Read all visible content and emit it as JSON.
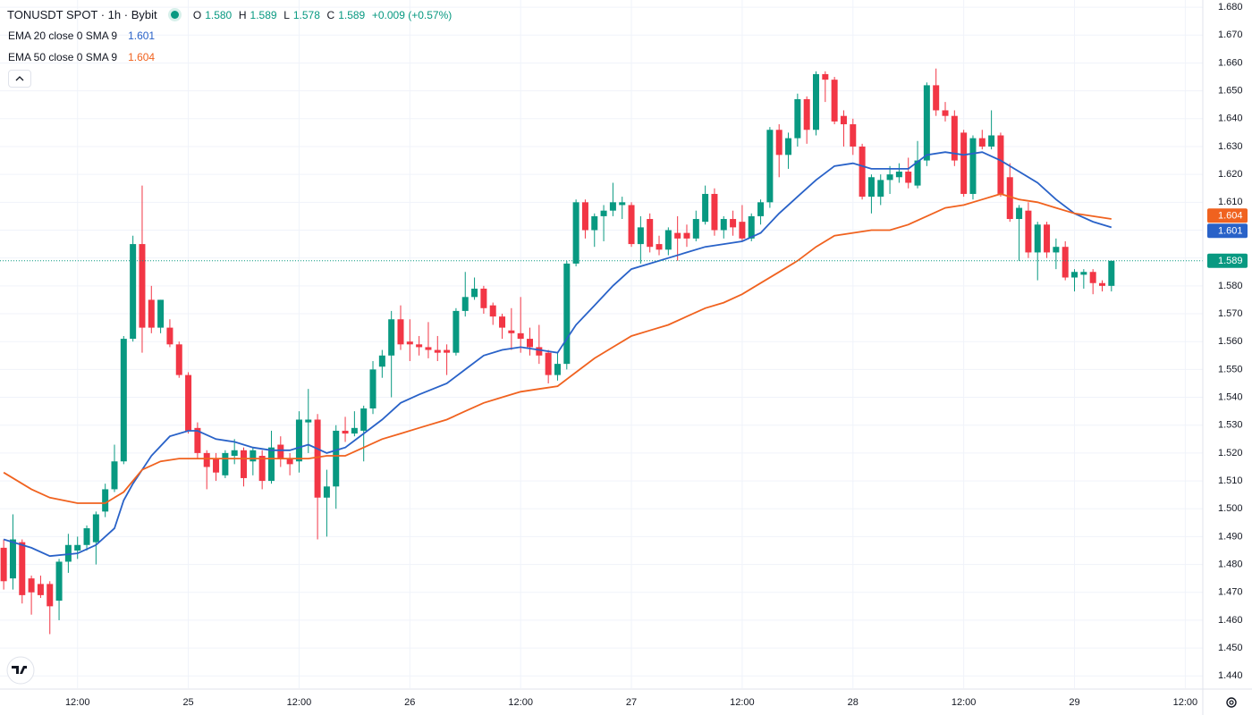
{
  "header": {
    "symbol": "TONUSDT SPOT · 1h · Bybit",
    "open_label": "O",
    "open": "1.580",
    "high_label": "H",
    "high": "1.589",
    "low_label": "L",
    "low": "1.578",
    "close_label": "C",
    "close": "1.589",
    "change": "+0.009 (+0.57%)"
  },
  "chart_data": {
    "type": "candlestick",
    "x": [
      4,
      5,
      6,
      7,
      8,
      9,
      10,
      11,
      12,
      13,
      14,
      15,
      16,
      17,
      18,
      19,
      20,
      21,
      22,
      23,
      24,
      25,
      26,
      27,
      28,
      29,
      30,
      31,
      32,
      33,
      34,
      35,
      36,
      37,
      38,
      39,
      40,
      41,
      42,
      43,
      44,
      45,
      46,
      47,
      48,
      49,
      50,
      51,
      52,
      53,
      54,
      55,
      56,
      57,
      58,
      59,
      60,
      61,
      62,
      63,
      64,
      65,
      66,
      67,
      68,
      69,
      70,
      71,
      72,
      73,
      74,
      75,
      76,
      77,
      78,
      79,
      80,
      81,
      82,
      83,
      84,
      85,
      86,
      87,
      88,
      89,
      90,
      91,
      92,
      93,
      94,
      95,
      96,
      97,
      98,
      99,
      100,
      101,
      102,
      103,
      104,
      105,
      106,
      107,
      108,
      109,
      110,
      111,
      112,
      113,
      114,
      115,
      116,
      117,
      118,
      119,
      120,
      121,
      122,
      123,
      124
    ],
    "open": [
      1.486,
      1.475,
      1.488,
      1.475,
      1.473,
      1.473,
      1.467,
      1.481,
      1.485,
      1.487,
      1.488,
      1.499,
      1.507,
      1.517,
      1.561,
      1.595,
      1.575,
      1.565,
      1.565,
      1.559,
      1.548,
      1.529,
      1.52,
      1.518,
      1.512,
      1.519,
      1.521,
      1.517,
      1.519,
      1.51,
      1.523,
      1.518,
      1.517,
      1.531,
      1.532,
      1.504,
      1.508,
      1.528,
      1.527,
      1.528,
      1.536,
      1.551,
      1.555,
      1.568,
      1.56,
      1.559,
      1.558,
      1.557,
      1.557,
      1.556,
      1.571,
      1.576,
      1.579,
      1.573,
      1.569,
      1.564,
      1.563,
      1.561,
      1.558,
      1.556,
      1.548,
      1.552,
      1.588,
      1.61,
      1.6,
      1.605,
      1.607,
      1.609,
      1.609,
      1.595,
      1.604,
      1.595,
      1.593,
      1.599,
      1.599,
      1.597,
      1.603,
      1.613,
      1.6,
      1.604,
      1.603,
      1.597,
      1.605,
      1.61,
      1.636,
      1.627,
      1.633,
      1.647,
      1.636,
      1.656,
      1.654,
      1.641,
      1.638,
      1.63,
      1.612,
      1.612,
      1.618,
      1.619,
      1.621,
      1.616,
      1.625,
      1.652,
      1.643,
      1.641,
      1.635,
      1.613,
      1.633,
      1.63,
      1.634,
      1.619,
      1.604,
      1.607,
      1.592,
      1.602,
      1.592,
      1.594,
      1.583,
      1.584,
      1.585,
      1.581,
      1.58
    ],
    "high": [
      1.489,
      1.498,
      1.489,
      1.476,
      1.476,
      1.474,
      1.482,
      1.491,
      1.49,
      1.494,
      1.499,
      1.509,
      1.523,
      1.562,
      1.598,
      1.616,
      1.58,
      1.575,
      1.568,
      1.56,
      1.549,
      1.531,
      1.521,
      1.52,
      1.521,
      1.525,
      1.522,
      1.522,
      1.521,
      1.528,
      1.526,
      1.52,
      1.535,
      1.543,
      1.534,
      1.514,
      1.53,
      1.533,
      1.535,
      1.537,
      1.553,
      1.557,
      1.571,
      1.573,
      1.568,
      1.562,
      1.567,
      1.562,
      1.559,
      1.572,
      1.585,
      1.583,
      1.58,
      1.574,
      1.57,
      1.572,
      1.576,
      1.565,
      1.566,
      1.557,
      1.556,
      1.589,
      1.611,
      1.611,
      1.606,
      1.609,
      1.617,
      1.612,
      1.61,
      1.605,
      1.606,
      1.598,
      1.601,
      1.605,
      1.602,
      1.607,
      1.616,
      1.615,
      1.605,
      1.607,
      1.609,
      1.606,
      1.611,
      1.637,
      1.638,
      1.635,
      1.649,
      1.648,
      1.657,
      1.657,
      1.655,
      1.643,
      1.64,
      1.631,
      1.62,
      1.62,
      1.623,
      1.624,
      1.626,
      1.632,
      1.653,
      1.658,
      1.646,
      1.643,
      1.636,
      1.634,
      1.636,
      1.643,
      1.635,
      1.624,
      1.609,
      1.61,
      1.603,
      1.603,
      1.597,
      1.596,
      1.586,
      1.586,
      1.586,
      1.582,
      1.589
    ],
    "low": [
      1.471,
      1.471,
      1.466,
      1.462,
      1.468,
      1.455,
      1.46,
      1.477,
      1.482,
      1.485,
      1.48,
      1.497,
      1.506,
      1.516,
      1.56,
      1.556,
      1.563,
      1.563,
      1.558,
      1.547,
      1.527,
      1.518,
      1.507,
      1.51,
      1.511,
      1.516,
      1.508,
      1.512,
      1.507,
      1.509,
      1.515,
      1.512,
      1.513,
      1.52,
      1.489,
      1.49,
      1.5,
      1.524,
      1.526,
      1.517,
      1.534,
      1.547,
      1.54,
      1.557,
      1.553,
      1.555,
      1.554,
      1.553,
      1.548,
      1.555,
      1.569,
      1.575,
      1.57,
      1.566,
      1.561,
      1.557,
      1.556,
      1.555,
      1.552,
      1.545,
      1.546,
      1.55,
      1.587,
      1.597,
      1.594,
      1.596,
      1.605,
      1.604,
      1.594,
      1.588,
      1.592,
      1.591,
      1.591,
      1.589,
      1.594,
      1.596,
      1.602,
      1.598,
      1.597,
      1.598,
      1.596,
      1.596,
      1.602,
      1.608,
      1.619,
      1.622,
      1.63,
      1.631,
      1.634,
      1.646,
      1.638,
      1.63,
      1.627,
      1.611,
      1.606,
      1.609,
      1.613,
      1.617,
      1.615,
      1.615,
      1.623,
      1.641,
      1.639,
      1.623,
      1.612,
      1.611,
      1.629,
      1.629,
      1.612,
      1.603,
      1.589,
      1.59,
      1.582,
      1.59,
      1.586,
      1.582,
      1.578,
      1.579,
      1.577,
      1.578,
      1.578
    ],
    "close": [
      1.474,
      1.489,
      1.469,
      1.47,
      1.469,
      1.465,
      1.481,
      1.487,
      1.487,
      1.493,
      1.498,
      1.507,
      1.517,
      1.561,
      1.595,
      1.565,
      1.565,
      1.575,
      1.559,
      1.548,
      1.528,
      1.52,
      1.515,
      1.513,
      1.52,
      1.521,
      1.511,
      1.521,
      1.51,
      1.522,
      1.518,
      1.516,
      1.532,
      1.532,
      1.504,
      1.508,
      1.528,
      1.527,
      1.529,
      1.536,
      1.55,
      1.555,
      1.568,
      1.559,
      1.559,
      1.558,
      1.557,
      1.556,
      1.556,
      1.571,
      1.576,
      1.579,
      1.572,
      1.569,
      1.565,
      1.563,
      1.561,
      1.558,
      1.555,
      1.548,
      1.552,
      1.588,
      1.61,
      1.6,
      1.605,
      1.607,
      1.61,
      1.61,
      1.595,
      1.601,
      1.594,
      1.593,
      1.6,
      1.597,
      1.597,
      1.604,
      1.613,
      1.6,
      1.604,
      1.601,
      1.597,
      1.605,
      1.61,
      1.636,
      1.627,
      1.633,
      1.647,
      1.636,
      1.656,
      1.654,
      1.639,
      1.638,
      1.63,
      1.612,
      1.619,
      1.618,
      1.62,
      1.621,
      1.617,
      1.625,
      1.652,
      1.643,
      1.641,
      1.625,
      1.613,
      1.633,
      1.63,
      1.634,
      1.613,
      1.604,
      1.608,
      1.592,
      1.602,
      1.592,
      1.594,
      1.583,
      1.585,
      1.585,
      1.581,
      1.58,
      1.589
    ],
    "up_color": "#089981",
    "down_color": "#f23645",
    "last_price_label": "1.589",
    "series": [
      {
        "name": "EMA 20 close 0 SMA 9",
        "color": "#2962c8",
        "value_label": "1.601",
        "x": [
          4,
          7,
          9,
          12,
          14,
          16,
          17,
          18,
          20,
          22,
          24,
          25,
          27,
          29,
          31,
          33,
          35,
          37,
          39,
          41,
          43,
          45,
          47,
          49,
          52,
          54,
          56,
          58,
          60,
          62,
          64,
          66,
          68,
          70,
          72,
          74,
          76,
          78,
          80,
          82,
          84,
          86,
          88,
          90,
          92,
          94,
          96,
          98,
          100,
          102,
          104,
          106,
          108,
          110,
          112,
          114,
          116,
          118,
          120,
          122,
          124
        ],
        "values": [
          1.489,
          1.486,
          1.483,
          1.484,
          1.487,
          1.493,
          1.503,
          1.509,
          1.519,
          1.526,
          1.528,
          1.528,
          1.525,
          1.524,
          1.522,
          1.521,
          1.521,
          1.523,
          1.52,
          1.522,
          1.527,
          1.532,
          1.538,
          1.541,
          1.545,
          1.55,
          1.555,
          1.557,
          1.558,
          1.557,
          1.556,
          1.566,
          1.573,
          1.58,
          1.586,
          1.588,
          1.59,
          1.592,
          1.594,
          1.595,
          1.596,
          1.599,
          1.606,
          1.612,
          1.618,
          1.623,
          1.624,
          1.622,
          1.622,
          1.622,
          1.627,
          1.628,
          1.627,
          1.628,
          1.625,
          1.621,
          1.617,
          1.611,
          1.606,
          1.603,
          1.601
        ]
      },
      {
        "name": "EMA 50 close 0 SMA 9",
        "color": "#f0621f",
        "value_label": "1.604",
        "x": [
          4,
          7,
          9,
          12,
          15,
          17,
          19,
          21,
          23,
          25,
          29,
          33,
          37,
          39,
          41,
          43,
          45,
          47,
          49,
          52,
          54,
          56,
          58,
          60,
          62,
          64,
          66,
          68,
          70,
          72,
          74,
          76,
          78,
          80,
          82,
          84,
          86,
          88,
          90,
          92,
          94,
          96,
          98,
          100,
          102,
          104,
          106,
          108,
          110,
          112,
          114,
          116,
          118,
          120,
          122,
          124
        ],
        "values": [
          1.513,
          1.507,
          1.504,
          1.502,
          1.502,
          1.506,
          1.514,
          1.517,
          1.518,
          1.518,
          1.518,
          1.518,
          1.518,
          1.519,
          1.519,
          1.522,
          1.525,
          1.527,
          1.529,
          1.532,
          1.535,
          1.538,
          1.54,
          1.542,
          1.543,
          1.544,
          1.549,
          1.554,
          1.558,
          1.562,
          1.564,
          1.566,
          1.569,
          1.572,
          1.574,
          1.577,
          1.581,
          1.585,
          1.589,
          1.594,
          1.598,
          1.599,
          1.6,
          1.6,
          1.602,
          1.605,
          1.608,
          1.609,
          1.611,
          1.613,
          1.611,
          1.61,
          1.608,
          1.606,
          1.605,
          1.604
        ]
      }
    ],
    "xlim": [
      3.6,
      133.9
    ],
    "ylim": [
      1.4356,
      1.6826
    ],
    "xticks": [
      {
        "value": 12,
        "label": "12:00"
      },
      {
        "value": 24,
        "label": "25"
      },
      {
        "value": 36,
        "label": "12:00"
      },
      {
        "value": 48,
        "label": "26"
      },
      {
        "value": 60,
        "label": "12:00"
      },
      {
        "value": 72,
        "label": "27"
      },
      {
        "value": 84,
        "label": "12:00"
      },
      {
        "value": 96,
        "label": "28"
      },
      {
        "value": 108,
        "label": "12:00"
      },
      {
        "value": 120,
        "label": "29"
      },
      {
        "value": 132,
        "label": "12:00"
      }
    ],
    "yticks": [
      {
        "value": 1.44,
        "label": "1.440"
      },
      {
        "value": 1.45,
        "label": "1.450"
      },
      {
        "value": 1.46,
        "label": "1.460"
      },
      {
        "value": 1.47,
        "label": "1.470"
      },
      {
        "value": 1.48,
        "label": "1.480"
      },
      {
        "value": 1.49,
        "label": "1.490"
      },
      {
        "value": 1.5,
        "label": "1.500"
      },
      {
        "value": 1.51,
        "label": "1.510"
      },
      {
        "value": 1.52,
        "label": "1.520"
      },
      {
        "value": 1.53,
        "label": "1.530"
      },
      {
        "value": 1.54,
        "label": "1.540"
      },
      {
        "value": 1.55,
        "label": "1.550"
      },
      {
        "value": 1.56,
        "label": "1.560"
      },
      {
        "value": 1.57,
        "label": "1.570"
      },
      {
        "value": 1.58,
        "label": "1.580"
      },
      {
        "value": 1.59,
        "label": "1.590"
      },
      {
        "value": 1.6,
        "label": "1.600"
      },
      {
        "value": 1.61,
        "label": "1.610"
      },
      {
        "value": 1.62,
        "label": "1.620"
      },
      {
        "value": 1.63,
        "label": "1.630"
      },
      {
        "value": 1.64,
        "label": "1.640"
      },
      {
        "value": 1.65,
        "label": "1.650"
      },
      {
        "value": 1.66,
        "label": "1.660"
      },
      {
        "value": 1.67,
        "label": "1.670"
      },
      {
        "value": 1.68,
        "label": "1.680"
      }
    ],
    "grid": true
  }
}
